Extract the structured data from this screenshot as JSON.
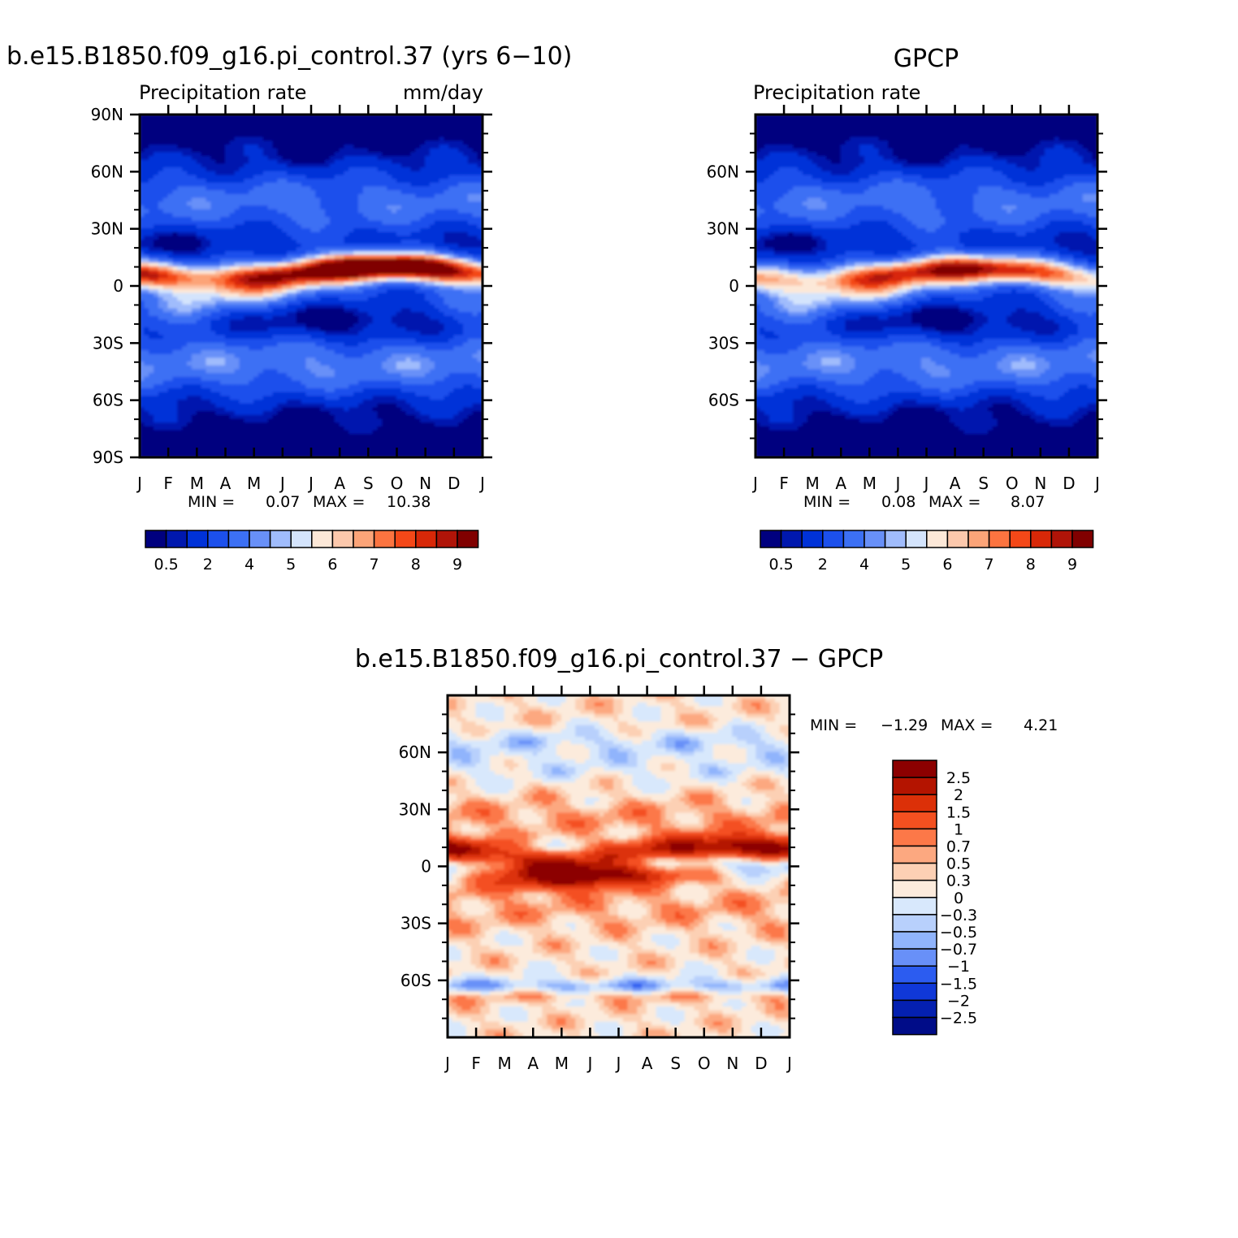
{
  "months": [
    "J",
    "F",
    "M",
    "A",
    "M",
    "J",
    "J",
    "A",
    "S",
    "O",
    "N",
    "D",
    "J"
  ],
  "lat_ticks_full": [
    "90N",
    "60N",
    "30N",
    "0",
    "30S",
    "60S",
    "90S"
  ],
  "lat_ticks_short": [
    "60N",
    "30N",
    "0",
    "30S",
    "60S"
  ],
  "colors": {
    "abs": [
      "#00007f",
      "#0018ae",
      "#0032d8",
      "#1c50ec",
      "#3c70f4",
      "#6890f8",
      "#a0bcfc",
      "#d4e4fc",
      "#fce8d8",
      "#fcc8ac",
      "#fca478",
      "#fc7440",
      "#f44818",
      "#d82808",
      "#b01408",
      "#800000"
    ],
    "diff": [
      "#8c0000",
      "#b41400",
      "#dc3008",
      "#f45020",
      "#fc7848",
      "#fca880",
      "#fcd0b4",
      "#fcebdc",
      "#d8e8fc",
      "#b8d0fc",
      "#90b4fc",
      "#6890f8",
      "#2c5cf0",
      "#1038d8",
      "#0420b0",
      "#000c88"
    ]
  },
  "chart_data": [
    {
      "type": "heatmap",
      "title": "b.e15.B1850.f09_g16.pi_control.37 (yrs 6−10)",
      "subtitle_left": "Precipitation rate",
      "subtitle_right": "mm/day",
      "x": [
        "J",
        "F",
        "M",
        "A",
        "M",
        "J",
        "J",
        "A",
        "S",
        "O",
        "N",
        "D",
        "J"
      ],
      "y_ticks": [
        "90N",
        "60N",
        "30N",
        "0",
        "30S",
        "60S",
        "90S"
      ],
      "ylim": [
        -90,
        90
      ],
      "min_label": "MIN =",
      "min_value": "0.07",
      "max_label": "MAX =",
      "max_value": "10.38",
      "colorbar_labels": [
        "0.5",
        "2",
        "4",
        "5",
        "6",
        "7",
        "8",
        "9"
      ],
      "itcz": {
        "lat_start": 4,
        "lat_peak": 10,
        "peak_month": 8.5,
        "peak_value": 10.38,
        "min_value": 0.07
      }
    },
    {
      "type": "heatmap",
      "title": "GPCP",
      "subtitle_left": "Precipitation rate",
      "subtitle_right": "",
      "x": [
        "J",
        "F",
        "M",
        "A",
        "M",
        "J",
        "J",
        "A",
        "S",
        "O",
        "N",
        "D",
        "J"
      ],
      "y_ticks": [
        "60N",
        "30N",
        "0",
        "30S",
        "60S"
      ],
      "ylim": [
        -90,
        90
      ],
      "min_label": "MIN =",
      "min_value": "0.08",
      "max_label": "MAX =",
      "max_value": "8.07",
      "colorbar_labels": [
        "0.5",
        "2",
        "4",
        "5",
        "6",
        "7",
        "8",
        "9"
      ],
      "itcz": {
        "lat_start": 3,
        "lat_peak": 9,
        "peak_month": 7.5,
        "peak_value": 8.07,
        "min_value": 0.08
      }
    },
    {
      "type": "heatmap",
      "title": "b.e15.B1850.f09_g16.pi_control.37 − GPCP",
      "x": [
        "J",
        "F",
        "M",
        "A",
        "M",
        "J",
        "J",
        "A",
        "S",
        "O",
        "N",
        "D",
        "J"
      ],
      "y_ticks": [
        "60N",
        "30N",
        "0",
        "30S",
        "60S"
      ],
      "ylim": [
        -90,
        90
      ],
      "min_label": "MIN =",
      "min_value": "−1.29",
      "max_label": "MAX =",
      "max_value": "4.21",
      "colorbar_labels": [
        "2.5",
        "2",
        "1.5",
        "1",
        "0.7",
        "0.5",
        "0.3",
        "0",
        "−0.3",
        "−0.5",
        "−0.7",
        "−1",
        "−1.5",
        "−2",
        "−2.5"
      ]
    }
  ]
}
